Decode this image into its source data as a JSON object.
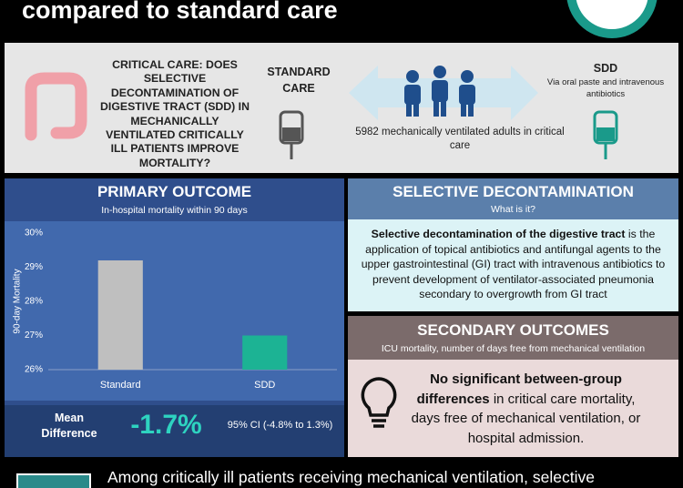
{
  "header": {
    "title": "compared to standard care"
  },
  "question": "CRITICAL CARE: DOES SELECTIVE DECONTAMINATION OF DIGESTIVE TRACT (SDD) IN MECHANICALLY VENTILATED CRITICALLY ILL PATIENTS IMPROVE MORTALITY?",
  "standard_care": {
    "label": "STANDARD CARE"
  },
  "population": "5982 mechanically ventilated adults in critical care",
  "sdd": {
    "label": "SDD",
    "description": "Via oral paste and intravenous antibiotics"
  },
  "primary_outcome": {
    "title": "PRIMARY OUTCOME",
    "subtitle": "In-hospital mortality within 90 days",
    "chart": {
      "type": "bar",
      "y_label": "90-day Mortality",
      "categories": [
        "Standard",
        "SDD"
      ],
      "values": [
        29.2,
        27.0
      ],
      "colors": [
        "#bfbfbf",
        "#1cb394"
      ],
      "ylim": [
        26,
        30
      ],
      "yticks": [
        {
          "value": 26,
          "label": "26%"
        },
        {
          "value": 27,
          "label": "27%"
        },
        {
          "value": 28,
          "label": "28%"
        },
        {
          "value": 29,
          "label": "29%"
        },
        {
          "value": 30,
          "label": "30%"
        }
      ]
    },
    "mean_difference_label": "Mean Difference",
    "mean_difference": "-1.7%",
    "ci": "95% CI (-4.8% to 1.3%)"
  },
  "definition": {
    "title": "SELECTIVE DECONTAMINATION",
    "subtitle": "What is it?",
    "term": "Selective decontamination of the digestive tract",
    "text": "is the application of topical antibiotics and antifungal agents to the upper gastrointestinal (GI) tract with intravenous antibiotics to prevent development of ventilator-associated pneumonia secondary to overgrowth from GI tract"
  },
  "secondary_outcomes": {
    "title": "SECONDARY OUTCOMES",
    "subtitle": "ICU mortality, number of days free from mechanical ventilation",
    "bold_text": "No significant between-group differences",
    "text": "in critical care mortality, days free of mechanical ventilation, or hospital admission."
  },
  "footer": {
    "text": "Among critically ill patients receiving mechanical ventilation, selective"
  }
}
